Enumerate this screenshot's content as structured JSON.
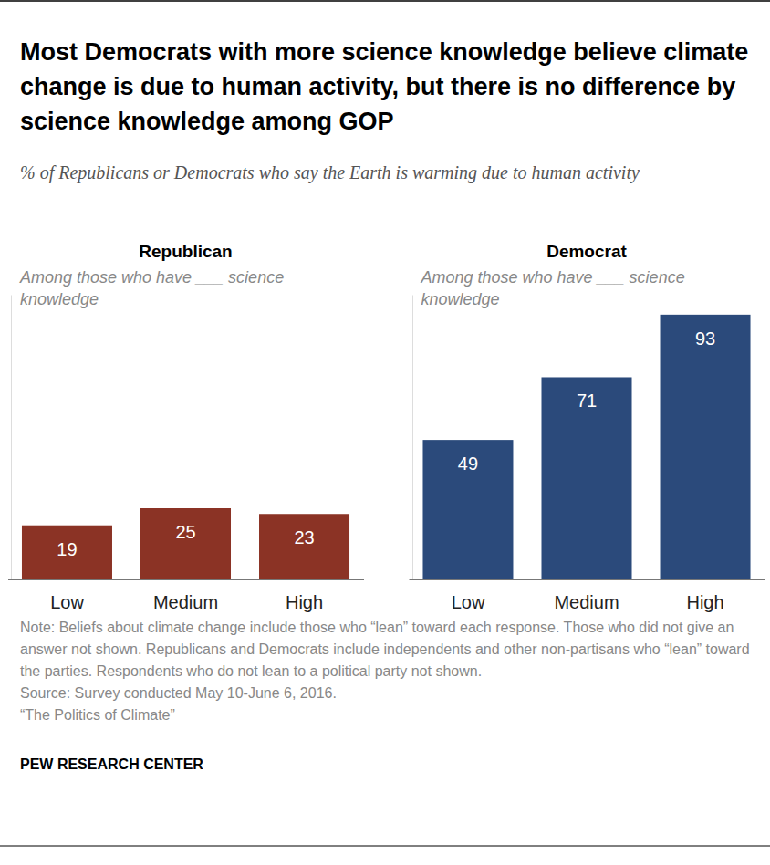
{
  "page": {
    "title": "Most Democrats with more science knowledge believe climate change is due to human activity, but there is no difference by science knowledge among GOP",
    "subtitle": "% of Republicans or Democrats who say the Earth is warming due to human activity",
    "note": "Note: Beliefs about climate change include those who “lean” toward each response. Those who did not give an answer not shown. Republicans and Democrats include independents and other non-partisans who “lean” toward the parties. Respondents who do not lean to a political party not shown.",
    "source": "Source: Survey conducted May 10-June 6, 2016.",
    "report": "“The Politics of Climate”",
    "brand": "PEW RESEARCH CENTER"
  },
  "chart_data": [
    {
      "type": "bar",
      "title": "Republican",
      "subtitle": "Among those who have ___ science knowledge",
      "categories": [
        "Low",
        "Medium",
        "High"
      ],
      "values": [
        19,
        25,
        23
      ],
      "color": "#8b3325",
      "ylim": [
        0,
        100
      ],
      "data_labels": true,
      "tick_labels": "x"
    },
    {
      "type": "bar",
      "title": "Democrat",
      "subtitle": "Among those who have ___ science knowledge",
      "categories": [
        "Low",
        "Medium",
        "High"
      ],
      "values": [
        49,
        71,
        93
      ],
      "color": "#2b4a7b",
      "ylim": [
        0,
        100
      ],
      "data_labels": true,
      "tick_labels": "x"
    }
  ]
}
